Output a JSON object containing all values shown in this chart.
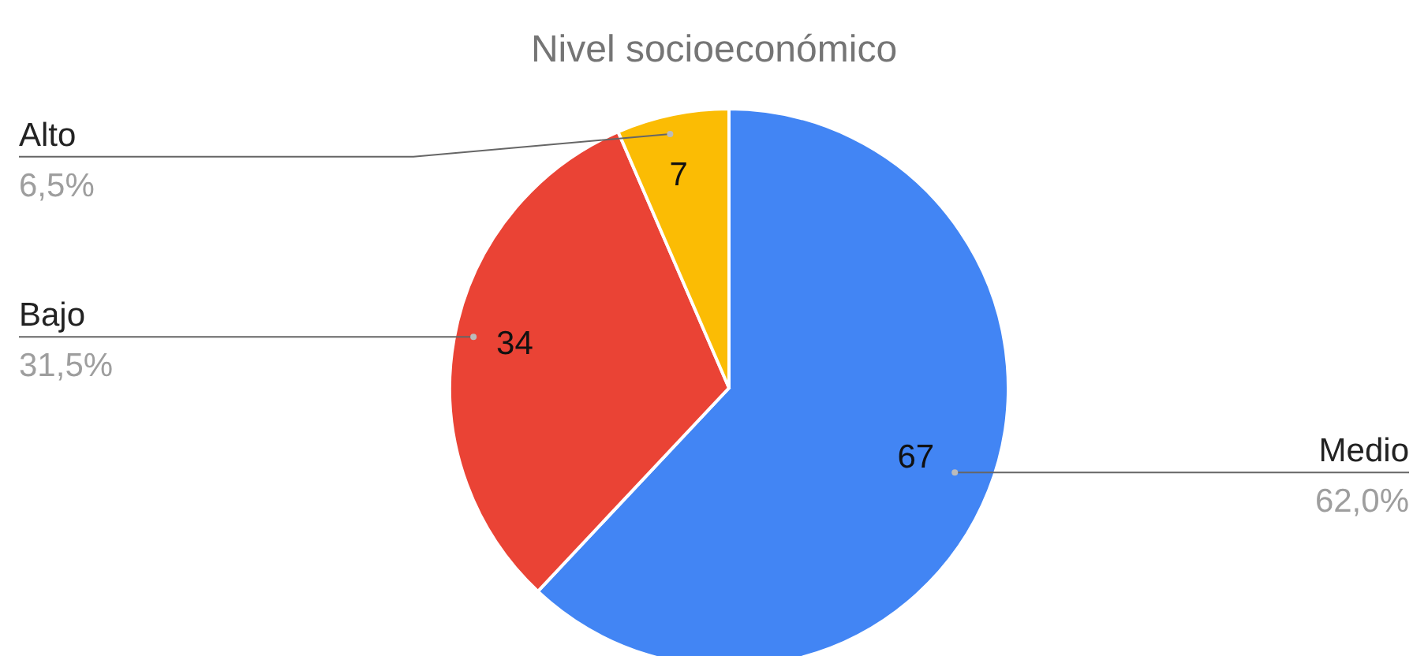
{
  "chart_data": {
    "type": "pie",
    "title": "Nivel socioeconómico",
    "categories": [
      "Medio",
      "Bajo",
      "Alto"
    ],
    "values": [
      62.0,
      31.5,
      6.5
    ],
    "colors": [
      "#4285f4",
      "#ea4335",
      "#fbbc04"
    ],
    "value_labels": [
      "62,0%",
      "31,5%",
      "6,5%"
    ],
    "annotations": [
      {
        "text": "67",
        "x": "Medio"
      },
      {
        "text": "34",
        "x": "Bajo"
      },
      {
        "text": "7",
        "x": "Alto"
      }
    ]
  }
}
